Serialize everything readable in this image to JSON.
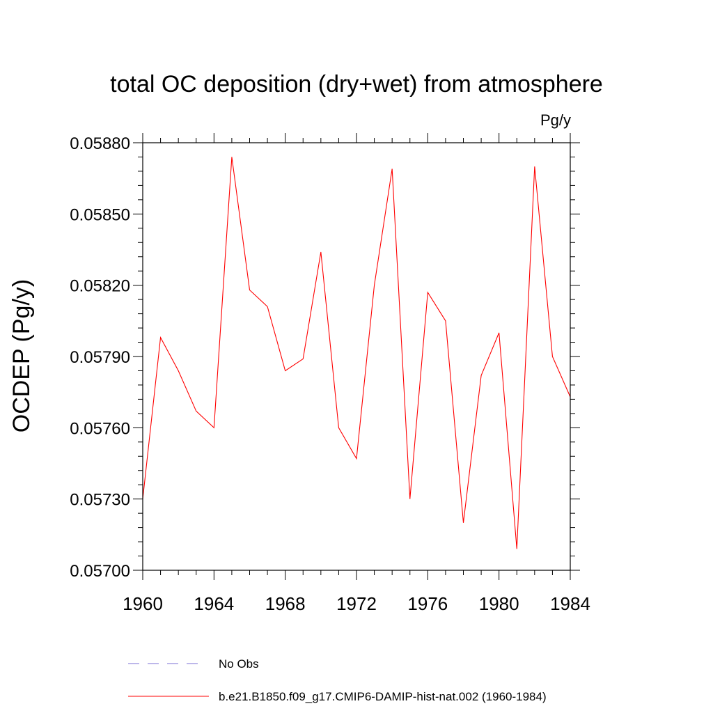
{
  "chart_data": {
    "type": "line",
    "title": "total OC deposition (dry+wet) from atmosphere",
    "units_label": "Pg/y",
    "ylabel": "OCDEP  (Pg/y)",
    "xlabel": "",
    "xlim": [
      1960,
      1984
    ],
    "ylim": [
      0.057,
      0.0588
    ],
    "x_ticks": [
      1960,
      1964,
      1968,
      1972,
      1976,
      1980,
      1984
    ],
    "x_tick_labels": [
      "1960",
      "1964",
      "1968",
      "1972",
      "1976",
      "1980",
      "1984"
    ],
    "y_ticks": [
      0.057,
      0.0573,
      0.0576,
      0.0579,
      0.0582,
      0.0585,
      0.0588
    ],
    "y_tick_labels": [
      "0.05700",
      "0.05730",
      "0.05760",
      "0.05790",
      "0.05820",
      "0.05850",
      "0.05880"
    ],
    "grid": false,
    "legend_position": "bottom",
    "series": [
      {
        "name": "b.e21.B1850.f09_g17.CMIP6-DAMIP-hist-nat.002 (1960-1984)",
        "color": "#ff0000",
        "style": "solid",
        "x": [
          1960,
          1961,
          1962,
          1963,
          1964,
          1965,
          1966,
          1967,
          1968,
          1969,
          1970,
          1971,
          1972,
          1973,
          1974,
          1975,
          1976,
          1977,
          1978,
          1979,
          1980,
          1981,
          1982,
          1983,
          1984
        ],
        "values": [
          0.0573,
          0.05798,
          0.05784,
          0.05767,
          0.0576,
          0.05874,
          0.05818,
          0.05811,
          0.05784,
          0.05789,
          0.05834,
          0.0576,
          0.05747,
          0.0582,
          0.05869,
          0.0573,
          0.05817,
          0.05805,
          0.0572,
          0.05782,
          0.058,
          0.05709,
          0.0587,
          0.0579,
          0.05773
        ]
      }
    ],
    "legend": [
      {
        "label": "No Obs",
        "color": "#7b6fd6",
        "style": "dashed"
      },
      {
        "label": "b.e21.B1850.f09_g17.CMIP6-DAMIP-hist-nat.002 (1960-1984)",
        "color": "#ff0000",
        "style": "solid"
      }
    ]
  }
}
